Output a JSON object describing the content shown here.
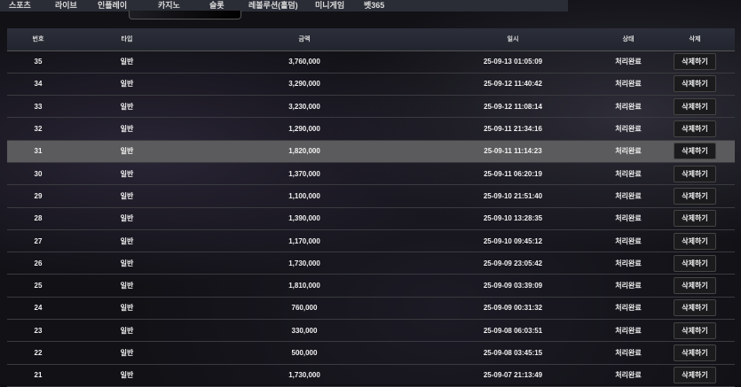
{
  "nav": [
    "스포츠",
    "라이브",
    "인플레이",
    "카지노",
    "슬롯",
    "레볼루션(홀덤)",
    "미니게임",
    "벳365"
  ],
  "headers": [
    "번호",
    "타입",
    "금액",
    "일시",
    "상태",
    "삭제"
  ],
  "delete_label": "삭제하기",
  "highlighted_row": "31",
  "rows": [
    [
      "35",
      "일반",
      "3,760,000",
      "25-09-13 01:05:09",
      "처리완료"
    ],
    [
      "34",
      "일반",
      "3,290,000",
      "25-09-12 11:40:42",
      "처리완료"
    ],
    [
      "33",
      "일반",
      "3,230,000",
      "25-09-12 11:08:14",
      "처리완료"
    ],
    [
      "32",
      "일반",
      "1,290,000",
      "25-09-11 21:34:16",
      "처리완료"
    ],
    [
      "31",
      "일반",
      "1,820,000",
      "25-09-11 11:14:23",
      "처리완료"
    ],
    [
      "30",
      "일반",
      "1,370,000",
      "25-09-11 06:20:19",
      "처리완료"
    ],
    [
      "29",
      "일반",
      "1,100,000",
      "25-09-10 21:51:40",
      "처리완료"
    ],
    [
      "28",
      "일반",
      "1,390,000",
      "25-09-10 13:28:35",
      "처리완료"
    ],
    [
      "27",
      "일반",
      "1,170,000",
      "25-09-10 09:45:12",
      "처리완료"
    ],
    [
      "26",
      "일반",
      "1,730,000",
      "25-09-09 23:05:42",
      "처리완료"
    ],
    [
      "25",
      "일반",
      "1,810,000",
      "25-09-09 03:39:09",
      "처리완료"
    ],
    [
      "24",
      "일반",
      "760,000",
      "25-09-09 00:31:32",
      "처리완료"
    ],
    [
      "23",
      "일반",
      "330,000",
      "25-09-08 06:03:51",
      "처리완료"
    ],
    [
      "22",
      "일반",
      "500,000",
      "25-09-08 03:45:15",
      "처리완료"
    ],
    [
      "21",
      "일반",
      "1,730,000",
      "25-09-07 21:13:49",
      "처리완료"
    ]
  ]
}
